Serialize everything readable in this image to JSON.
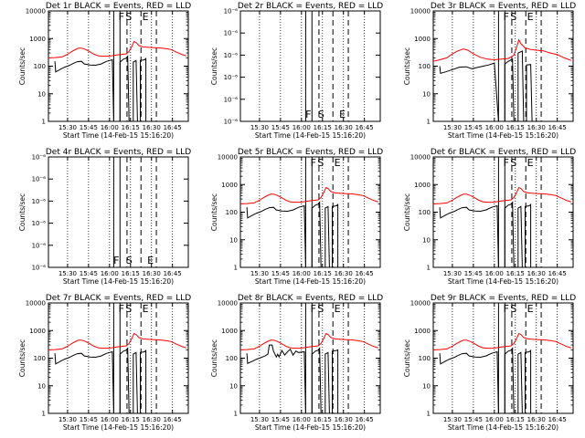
{
  "chart_data": [
    {
      "type": "line",
      "title": "Det 1r BLACK = Events, RED = LLD",
      "xlabel": "Start Time (14-Feb-15 15:16:20)",
      "ylabel": "Counts/sec",
      "yscale": "log",
      "ylim": [
        1,
        10000
      ],
      "xticks": [
        "15:30",
        "15:45",
        "16:00",
        "16:15",
        "16:30",
        "16:45"
      ],
      "yticks": [
        "1",
        "10",
        "100",
        "1000",
        "10000"
      ],
      "markers": [
        "F",
        "S",
        "E"
      ],
      "has_data": true,
      "black_variant": 1,
      "red_variant": 1
    },
    {
      "type": "line",
      "title": "Det 2r BLACK = Events, RED = LLD",
      "xlabel": "Start Time (14-Feb-15 15:16:20)",
      "ylabel": "Counts/sec",
      "yscale": "log",
      "ylim": [
        1e-06,
        6e-06
      ],
      "xticks": [
        "15:30",
        "15:45",
        "16:00",
        "16:15",
        "16:30",
        "16:45"
      ],
      "yticks": [
        "10⁻⁶",
        "10⁻⁶",
        "10⁻⁶",
        "10⁻⁶",
        "10⁻⁶",
        "10⁻⁶"
      ],
      "markers": [
        "F",
        "S",
        "E"
      ],
      "has_data": false
    },
    {
      "type": "line",
      "title": "Det 3r BLACK = Events, RED = LLD",
      "xlabel": "Start Time (14-Feb-15 15:16:20)",
      "ylabel": "Counts/sec",
      "yscale": "log",
      "ylim": [
        1,
        10000
      ],
      "xticks": [
        "15:30",
        "15:45",
        "16:00",
        "16:15",
        "16:30",
        "16:45"
      ],
      "yticks": [
        "1",
        "10",
        "100",
        "1000",
        "10000"
      ],
      "markers": [
        "F",
        "S",
        "E"
      ],
      "has_data": true,
      "black_variant": 3,
      "red_variant": 3
    },
    {
      "type": "line",
      "title": "Det 4r BLACK = Events, RED = LLD",
      "xlabel": "Start Time (14-Feb-15 15:16:20)",
      "ylabel": "Counts/sec",
      "yscale": "log",
      "ylim": [
        1e-06,
        6e-06
      ],
      "xticks": [
        "15:30",
        "15:45",
        "16:00",
        "16:15",
        "16:30",
        "16:45"
      ],
      "yticks": [
        "10⁻⁶",
        "10⁻⁶",
        "10⁻⁶",
        "10⁻⁶",
        "10⁻⁶",
        "10⁻⁶"
      ],
      "markers": [
        "F",
        "S",
        "E"
      ],
      "has_data": false
    },
    {
      "type": "line",
      "title": "Det 5r BLACK = Events, RED = LLD",
      "xlabel": "Start Time (14-Feb-15 15:16:20)",
      "ylabel": "Counts/sec",
      "yscale": "log",
      "ylim": [
        1,
        10000
      ],
      "xticks": [
        "15:30",
        "15:45",
        "16:00",
        "16:15",
        "16:30",
        "16:45"
      ],
      "yticks": [
        "1",
        "10",
        "100",
        "1000",
        "10000"
      ],
      "markers": [
        "F",
        "S",
        "E"
      ],
      "has_data": true,
      "black_variant": 1,
      "red_variant": 1
    },
    {
      "type": "line",
      "title": "Det 6r BLACK = Events, RED = LLD",
      "xlabel": "Start Time (14-Feb-15 15:16:20)",
      "ylabel": "Counts/sec",
      "yscale": "log",
      "ylim": [
        1,
        10000
      ],
      "xticks": [
        "15:30",
        "15:45",
        "16:00",
        "16:15",
        "16:30",
        "16:45"
      ],
      "yticks": [
        "1",
        "10",
        "100",
        "1000",
        "10000"
      ],
      "markers": [
        "F",
        "S",
        "E"
      ],
      "has_data": true,
      "black_variant": 1,
      "red_variant": 1
    },
    {
      "type": "line",
      "title": "Det 7r BLACK = Events, RED = LLD",
      "xlabel": "Start Time (14-Feb-15 15:16:20)",
      "ylabel": "Counts/sec",
      "yscale": "log",
      "ylim": [
        1,
        10000
      ],
      "xticks": [
        "15:30",
        "15:45",
        "16:00",
        "16:15",
        "16:30",
        "16:45"
      ],
      "yticks": [
        "1",
        "10",
        "100",
        "1000",
        "10000"
      ],
      "markers": [
        "F",
        "S",
        "E"
      ],
      "has_data": true,
      "black_variant": 1,
      "red_variant": 1
    },
    {
      "type": "line",
      "title": "Det 8r BLACK = Events, RED = LLD",
      "xlabel": "Start Time (14-Feb-15 15:16:20)",
      "ylabel": "Counts/sec",
      "yscale": "log",
      "ylim": [
        1,
        10000
      ],
      "xticks": [
        "15:30",
        "15:45",
        "16:00",
        "16:15",
        "16:30",
        "16:45"
      ],
      "yticks": [
        "1",
        "10",
        "100",
        "1000",
        "10000"
      ],
      "markers": [
        "F",
        "S",
        "E"
      ],
      "has_data": true,
      "black_variant": 8,
      "red_variant": 8
    },
    {
      "type": "line",
      "title": "Det 9r BLACK = Events, RED = LLD",
      "xlabel": "Start Time (14-Feb-15 15:16:20)",
      "ylabel": "Counts/sec",
      "yscale": "log",
      "ylim": [
        1,
        10000
      ],
      "xticks": [
        "15:30",
        "15:45",
        "16:00",
        "16:15",
        "16:30",
        "16:45"
      ],
      "yticks": [
        "1",
        "10",
        "100",
        "1000",
        "10000"
      ],
      "markers": [
        "F",
        "S",
        "E"
      ],
      "has_data": true,
      "black_variant": 1,
      "red_variant": 1
    }
  ],
  "series_colors": {
    "events": "#000000",
    "lld": "#ff0000"
  },
  "time_axis": {
    "start": "15:16:20",
    "end": "16:56:20",
    "tick_times": [
      "15:30",
      "15:45",
      "16:00",
      "16:15",
      "16:30",
      "16:45"
    ]
  },
  "event_lines": {
    "solid": [
      "16:03",
      "16:07:30"
    ],
    "dashed": [
      "16:12:30",
      "16:22:30",
      "16:33:30"
    ]
  },
  "series": {
    "lld_base": [
      [
        "15:16:20",
        200
      ],
      [
        "15:21",
        205
      ],
      [
        "15:26",
        215
      ],
      [
        "15:30",
        270
      ],
      [
        "15:33",
        340
      ],
      [
        "15:36",
        410
      ],
      [
        "15:38",
        450
      ],
      [
        "15:40",
        450
      ],
      [
        "15:43",
        400
      ],
      [
        "15:46",
        330
      ],
      [
        "15:49",
        270
      ],
      [
        "15:52",
        235
      ],
      [
        "15:55",
        230
      ],
      [
        "15:59",
        230
      ],
      [
        "16:02",
        240
      ],
      [
        "16:05",
        255
      ],
      [
        "16:08",
        265
      ],
      [
        "16:12",
        280
      ],
      [
        "16:14",
        340
      ],
      [
        "16:16",
        520
      ],
      [
        "16:17:30",
        780
      ],
      [
        "16:19",
        720
      ],
      [
        "16:21",
        560
      ],
      [
        "16:24",
        500
      ],
      [
        "16:28",
        480
      ],
      [
        "16:32",
        470
      ],
      [
        "16:36",
        460
      ],
      [
        "16:40",
        430
      ],
      [
        "16:44",
        400
      ],
      [
        "16:48",
        320
      ],
      [
        "16:52",
        260
      ],
      [
        "16:55",
        235
      ]
    ],
    "lld_det3": [
      [
        "15:16:20",
        150
      ],
      [
        "15:21",
        170
      ],
      [
        "15:26",
        200
      ],
      [
        "15:30",
        280
      ],
      [
        "15:34",
        360
      ],
      [
        "15:38",
        420
      ],
      [
        "15:41",
        380
      ],
      [
        "15:45",
        280
      ],
      [
        "15:50",
        210
      ],
      [
        "15:55",
        180
      ],
      [
        "16:00",
        170
      ],
      [
        "16:05",
        180
      ],
      [
        "16:10",
        190
      ],
      [
        "16:14",
        250
      ],
      [
        "16:16",
        500
      ],
      [
        "16:17:30",
        900
      ],
      [
        "16:19",
        650
      ],
      [
        "16:22",
        460
      ],
      [
        "16:26",
        400
      ],
      [
        "16:30",
        380
      ],
      [
        "16:35",
        360
      ],
      [
        "16:40",
        300
      ],
      [
        "16:45",
        260
      ],
      [
        "16:50",
        200
      ],
      [
        "16:55",
        160
      ]
    ],
    "events_base": [
      [
        "15:21",
        150
      ],
      [
        "15:21:30",
        62
      ],
      [
        "15:25",
        78
      ],
      [
        "15:28",
        92
      ],
      [
        "15:31",
        105
      ],
      [
        "15:34",
        125
      ],
      [
        "15:37",
        145
      ],
      [
        "15:40",
        150
      ],
      [
        "15:42",
        120
      ],
      [
        "15:46",
        110
      ],
      [
        "15:50",
        108
      ],
      [
        "15:54",
        120
      ],
      [
        "15:58",
        150
      ],
      [
        "16:02",
        170
      ],
      [
        "16:03",
        1
      ],
      [
        "16:07:30",
        1
      ],
      [
        "16:07:30",
        140
      ],
      [
        "16:10",
        180
      ],
      [
        "16:12",
        195
      ],
      [
        "16:13",
        230
      ],
      [
        "16:14",
        1
      ],
      [
        "16:17",
        1
      ],
      [
        "16:17",
        140
      ],
      [
        "16:19",
        160
      ],
      [
        "16:20",
        1
      ],
      [
        "16:22",
        1
      ],
      [
        "16:22",
        160
      ],
      [
        "16:25",
        170
      ],
      [
        "16:26",
        190
      ],
      [
        "16:26",
        1
      ]
    ],
    "events_det8": [
      [
        "15:21",
        150
      ],
      [
        "15:21:30",
        65
      ],
      [
        "15:25",
        78
      ],
      [
        "15:28",
        92
      ],
      [
        "15:31",
        105
      ],
      [
        "15:34",
        120
      ],
      [
        "15:36",
        140
      ],
      [
        "15:37",
        300
      ],
      [
        "15:39",
        300
      ],
      [
        "15:40",
        180
      ],
      [
        "15:42",
        110
      ],
      [
        "15:43",
        140
      ],
      [
        "15:44",
        110
      ],
      [
        "15:46",
        190
      ],
      [
        "15:48",
        130
      ],
      [
        "15:50",
        170
      ],
      [
        "15:52",
        210
      ],
      [
        "15:54",
        130
      ],
      [
        "15:56",
        180
      ],
      [
        "15:58",
        160
      ],
      [
        "16:02",
        170
      ],
      [
        "16:03",
        1
      ],
      [
        "16:07:30",
        1
      ],
      [
        "16:07:30",
        140
      ],
      [
        "16:10",
        180
      ],
      [
        "16:12",
        195
      ],
      [
        "16:13",
        230
      ],
      [
        "16:14",
        1
      ],
      [
        "16:17",
        1
      ],
      [
        "16:17",
        140
      ],
      [
        "16:19",
        160
      ],
      [
        "16:20",
        1
      ],
      [
        "16:22",
        1
      ],
      [
        "16:22",
        180
      ],
      [
        "16:25",
        190
      ],
      [
        "16:26",
        200
      ],
      [
        "16:26",
        1
      ]
    ],
    "events_det3": [
      [
        "15:21",
        100
      ],
      [
        "15:21:30",
        55
      ],
      [
        "15:25",
        62
      ],
      [
        "15:30",
        75
      ],
      [
        "15:35",
        92
      ],
      [
        "15:40",
        95
      ],
      [
        "15:44",
        80
      ],
      [
        "15:48",
        90
      ],
      [
        "15:52",
        100
      ],
      [
        "15:56",
        110
      ],
      [
        "16:00",
        130
      ],
      [
        "16:03",
        1
      ],
      [
        "16:07:30",
        1
      ],
      [
        "16:07:30",
        120
      ],
      [
        "16:10",
        150
      ],
      [
        "16:13",
        180
      ],
      [
        "16:14",
        1
      ],
      [
        "16:17",
        1
      ],
      [
        "16:17",
        300
      ],
      [
        "16:20",
        350
      ],
      [
        "16:21",
        1
      ],
      [
        "16:23",
        1
      ],
      [
        "16:23",
        110
      ],
      [
        "16:26",
        115
      ],
      [
        "16:27",
        1
      ]
    ]
  }
}
